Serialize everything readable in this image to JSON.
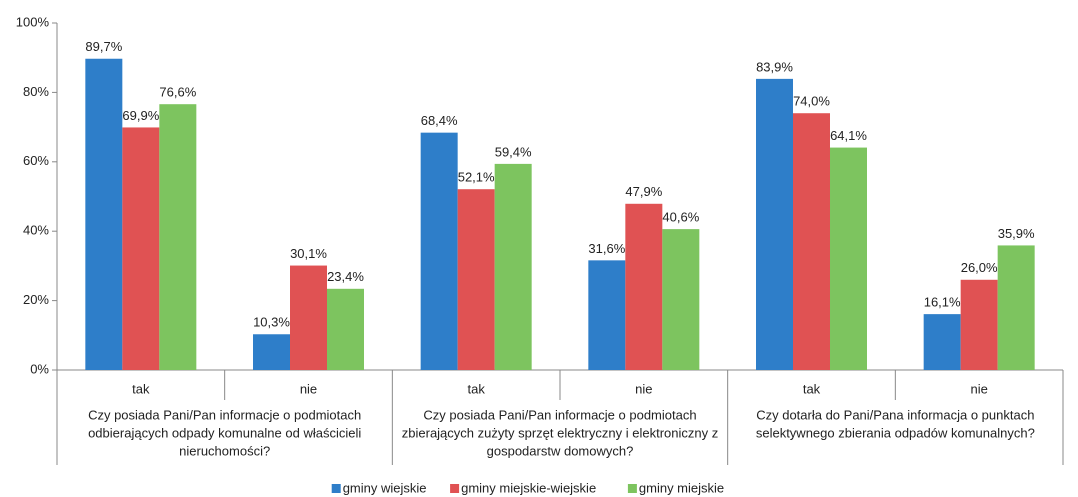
{
  "chart_data": {
    "type": "bar",
    "categories": [
      "tak",
      "nie",
      "tak",
      "nie",
      "tak",
      "nie"
    ],
    "groups": [
      [
        "Czy posiada Pani/Pan informacje o podmiotach",
        "odbierających odpady komunalne od właścicieli",
        "nieruchomości?"
      ],
      [
        "Czy posiada Pani/Pan informacje o podmiotach",
        "zbierających zużyty sprzęt elektryczny i elektroniczny z",
        "gospodarstw domowych?"
      ],
      [
        "Czy dotarła do Pani/Pana informacja o punktach",
        "selektywnego zbierania odpadów komunalnych?"
      ]
    ],
    "series": [
      {
        "name": "gminy wiejskie",
        "color": "#2e7ec9",
        "values": [
          89.7,
          10.3,
          68.4,
          31.6,
          83.9,
          16.1
        ],
        "value_labels": [
          "89,7%",
          "10,3%",
          "68,4%",
          "31,6%",
          "83,9%",
          "16,1%"
        ]
      },
      {
        "name": "gminy miejskie-wiejskie",
        "color": "#e05253",
        "values": [
          69.9,
          30.1,
          52.1,
          47.9,
          74.0,
          26.0
        ],
        "value_labels": [
          "69,9%",
          "30,1%",
          "52,1%",
          "47,9%",
          "74,0%",
          "26,0%"
        ]
      },
      {
        "name": "gminy miejskie",
        "color": "#7dc45f",
        "values": [
          76.6,
          23.4,
          59.4,
          40.6,
          64.1,
          35.9
        ],
        "value_labels": [
          "76,6%",
          "23,4%",
          "59,4%",
          "40,6%",
          "64,1%",
          "35,9%"
        ]
      }
    ],
    "ylim": [
      0,
      100
    ],
    "yticks": [
      {
        "value": 0,
        "label": "0%"
      },
      {
        "value": 20,
        "label": "20%"
      },
      {
        "value": 40,
        "label": "40%"
      },
      {
        "value": 60,
        "label": "60%"
      },
      {
        "value": 80,
        "label": "80%"
      },
      {
        "value": 100,
        "label": "100%"
      }
    ],
    "grid": false,
    "legend": "bottom"
  }
}
